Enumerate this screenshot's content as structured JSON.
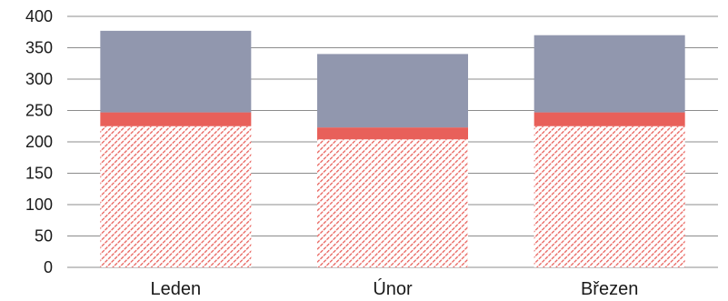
{
  "chart_data": {
    "type": "bar",
    "stacked": true,
    "categories": [
      "Leden",
      "Únor",
      "Březen"
    ],
    "series": [
      {
        "values": [
          225,
          204,
          225
        ],
        "color": "#e8605a",
        "pattern": "diagonal-hatch"
      },
      {
        "values": [
          22,
          19,
          22
        ],
        "color": "#e8605a",
        "pattern": "solid"
      },
      {
        "values": [
          130,
          117,
          123
        ],
        "color": "#9197ae",
        "pattern": "solid"
      }
    ],
    "ylim": [
      0,
      400
    ],
    "yticks": [
      0,
      50,
      100,
      150,
      200,
      250,
      300,
      350,
      400
    ],
    "grid": true,
    "legend": "none"
  }
}
